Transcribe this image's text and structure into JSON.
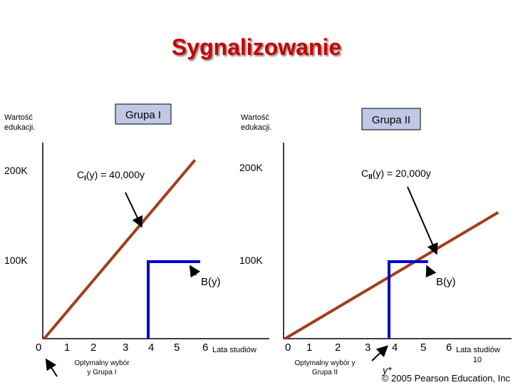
{
  "slide": {
    "title": "Sygnalizowanie",
    "copyright": "© 2005 Pearson Education, Inc"
  },
  "chart_data": [
    {
      "type": "line",
      "group_label": "Grupa I",
      "y_axis_label": [
        "Wartość",
        "edukacji."
      ],
      "x_axis_label": "Lata studiów",
      "x_ticks": [
        "0",
        "1",
        "2",
        "3",
        "4",
        "5",
        "6"
      ],
      "y_ticks": [
        "100K",
        "200K"
      ],
      "xlim": [
        0,
        6
      ],
      "ylim": [
        0,
        240000
      ],
      "cost_label": "CI(y) = 40,000y",
      "cost_slope": 40000,
      "cost_x_max": 5.8,
      "benefit_label": "B(y)",
      "benefit_step_x": 4,
      "benefit_x_max": 6,
      "benefit_low": 0,
      "benefit_high": 100000,
      "optimum_note": [
        "Optymalny wybór",
        "y Grupa I"
      ],
      "optimum_marker": ""
    },
    {
      "type": "line",
      "group_label": "Grupa II",
      "y_axis_label": [
        "Wartość",
        "edukacji."
      ],
      "x_axis_label": [
        "Lata studiów",
        "10"
      ],
      "x_ticks": [
        "0",
        "1",
        "2",
        "3",
        "4",
        "5",
        "6"
      ],
      "y_ticks": [
        "100K",
        "200K"
      ],
      "xlim": [
        0,
        6
      ],
      "ylim": [
        0,
        240000
      ],
      "cost_label": "CII(y) = 20,000y",
      "cost_slope": 20000,
      "cost_x_max": 8.2,
      "benefit_label": "B(y)",
      "benefit_step_x": 4,
      "benefit_x_max": 5.5,
      "benefit_low": 0,
      "benefit_high": 100000,
      "optimum_note": [
        "Optymalny wybór y",
        "Grupa II"
      ],
      "optimum_marker": "y*"
    }
  ],
  "colors": {
    "title": "#cc0000",
    "cost_line": "#a0401c",
    "benefit_line": "#0000cc",
    "axis": "#000000",
    "group_box": "#bfc9e6"
  }
}
